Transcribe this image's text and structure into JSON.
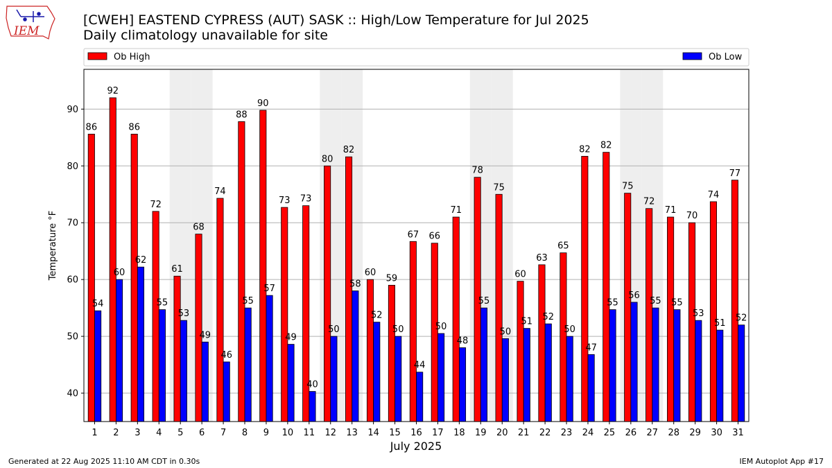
{
  "header": {
    "title": "[CWEH] EASTEND CYPRESS (AUT)  SASK :: High/Low Temperature for Jul 2025",
    "subtitle": "Daily climatology unavailable for site",
    "logo_text": "IEM"
  },
  "footer": {
    "left": "Generated at 22 Aug 2025 11:10 AM CDT in 0.30s",
    "right": "IEM Autoplot App #17"
  },
  "colors": {
    "high": "#ff0000",
    "low": "#0000ff",
    "weekend_band": "#eeeeee",
    "grid": "#b0b0b0"
  },
  "chart_data": {
    "type": "bar",
    "title": "[CWEH] EASTEND CYPRESS (AUT)  SASK :: High/Low Temperature for Jul 2025",
    "subtitle": "Daily climatology unavailable for site",
    "xlabel": "July 2025",
    "ylabel": "Temperature °F",
    "ylim": [
      35,
      97
    ],
    "yticks": [
      40,
      50,
      60,
      70,
      80,
      90
    ],
    "grid": true,
    "legend": {
      "placement": "top",
      "entries": [
        "Ob High",
        "Ob Low"
      ]
    },
    "categories": [
      "1",
      "2",
      "3",
      "4",
      "5",
      "6",
      "7",
      "8",
      "9",
      "10",
      "11",
      "12",
      "13",
      "14",
      "15",
      "16",
      "17",
      "18",
      "19",
      "20",
      "21",
      "22",
      "23",
      "24",
      "25",
      "26",
      "27",
      "28",
      "29",
      "30",
      "31"
    ],
    "shaded_days": [
      5,
      6,
      12,
      13,
      19,
      20,
      26,
      27
    ],
    "series": [
      {
        "name": "Ob High",
        "values": [
          85.6,
          92.0,
          85.6,
          72.0,
          60.6,
          68.0,
          74.3,
          87.8,
          89.8,
          72.7,
          73.0,
          80.0,
          81.6,
          60.0,
          59.0,
          66.7,
          66.4,
          71.0,
          78.0,
          75.0,
          59.7,
          62.6,
          64.7,
          81.7,
          82.4,
          75.2,
          72.5,
          71.0,
          70.0,
          73.7,
          77.5
        ],
        "labels": [
          "86",
          "92",
          "86",
          "72",
          "61",
          "68",
          "74",
          "88",
          "90",
          "73",
          "73",
          "80",
          "82",
          "60",
          "59",
          "67",
          "66",
          "71",
          "78",
          "75",
          "60",
          "63",
          "65",
          "82",
          "82",
          "75",
          "72",
          "71",
          "70",
          "74",
          "77"
        ]
      },
      {
        "name": "Ob Low",
        "values": [
          54.5,
          60.0,
          62.2,
          54.7,
          52.8,
          49.0,
          45.5,
          55.0,
          57.2,
          48.6,
          40.3,
          50.0,
          58.0,
          52.5,
          50.0,
          43.7,
          50.5,
          48.0,
          55.0,
          49.6,
          51.4,
          52.2,
          50.0,
          46.8,
          54.7,
          56.0,
          55.0,
          54.7,
          52.8,
          51.1,
          52.0
        ],
        "labels": [
          "54",
          "60",
          "62",
          "55",
          "53",
          "49",
          "46",
          "55",
          "57",
          "49",
          "40",
          "50",
          "58",
          "52",
          "50",
          "44",
          "50",
          "48",
          "55",
          "50",
          "51",
          "52",
          "50",
          "47",
          "55",
          "56",
          "55",
          "55",
          "53",
          "51",
          "52"
        ]
      }
    ]
  }
}
